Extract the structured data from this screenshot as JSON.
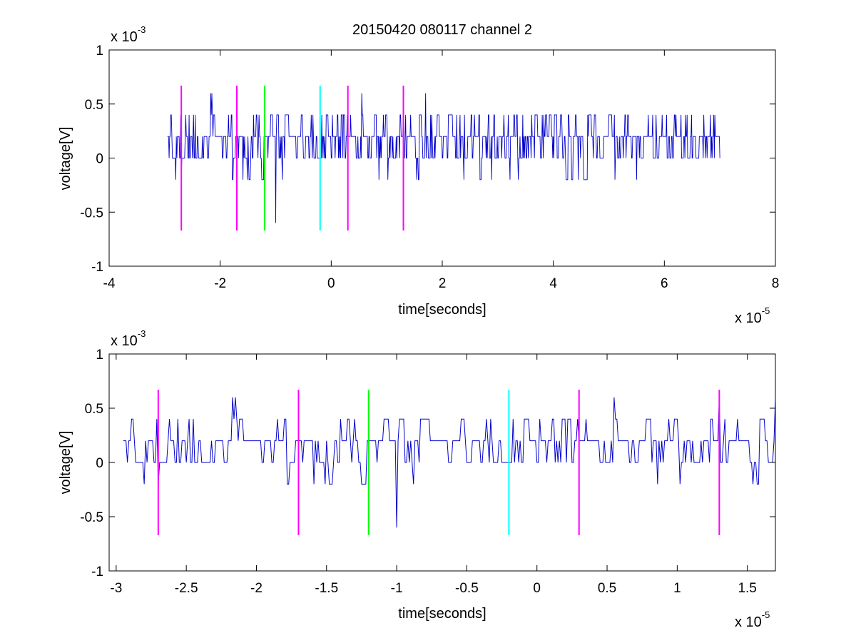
{
  "title": "20150420 080117 channel 2",
  "colors": {
    "background": "#ffffff",
    "signal": "#0000cc",
    "magenta": "#ff00ff",
    "green": "#00ff00",
    "cyan": "#00ffff",
    "axis": "#000000"
  },
  "chart_data": [
    {
      "type": "line",
      "panel": "top",
      "xlabel": "time[seconds]",
      "ylabel": "voltage[V]",
      "xlim": [
        -4e-05,
        8e-05
      ],
      "ylim": [
        -0.001,
        0.001
      ],
      "x_ticks": [
        -4,
        -2,
        0,
        2,
        4,
        6,
        8
      ],
      "x_tick_labels": [
        "-4",
        "-2",
        "0",
        "2",
        "4",
        "6",
        "8"
      ],
      "y_ticks": [
        -1,
        -0.5,
        0,
        0.5,
        1
      ],
      "y_tick_labels": [
        "-1",
        "-0.5",
        "0",
        "0.5",
        "1"
      ],
      "x_multiplier": "x 10",
      "x_exponent": "-5",
      "y_multiplier": "x 10",
      "y_exponent": "-3",
      "grid": false,
      "series": [
        {
          "signal_range_x": [
            -2.95e-05,
            7e-05
          ],
          "sample_step": 1e-07,
          "levels_V": [
            -0.0002,
            0,
            0.0002,
            0.0004
          ],
          "baseline_V": 0.0002,
          "color": "blue",
          "notable_points": [
            {
              "x": -1e-05,
              "y": -0.0006
            },
            {
              "x": 1.3e-05,
              "y": 0.0006
            },
            {
              "x": -2.15e-05,
              "y": 0.0006
            },
            {
              "x": 1.7e-05,
              "y": 0.0006
            }
          ]
        }
      ],
      "markers": [
        {
          "x": -2.7e-05,
          "color": "magenta",
          "ymin": -0.00067,
          "ymax": 0.00067
        },
        {
          "x": -1.7e-05,
          "color": "magenta",
          "ymin": -0.00067,
          "ymax": 0.00067
        },
        {
          "x": -1.2e-05,
          "color": "green",
          "ymin": -0.00067,
          "ymax": 0.00067
        },
        {
          "x": -2e-06,
          "color": "cyan",
          "ymin": -0.00067,
          "ymax": 0.00067
        },
        {
          "x": 3e-06,
          "color": "magenta",
          "ymin": -0.00067,
          "ymax": 0.00067
        },
        {
          "x": 1.3e-05,
          "color": "magenta",
          "ymin": -0.00067,
          "ymax": 0.00067
        }
      ]
    },
    {
      "type": "line",
      "panel": "bottom",
      "xlabel": "time[seconds]",
      "ylabel": "voltage[V]",
      "xlim": [
        -3.05e-05,
        1.7e-05
      ],
      "ylim": [
        -0.001,
        0.001
      ],
      "x_ticks": [
        -3,
        -2.5,
        -2,
        -1.5,
        -1,
        -0.5,
        0,
        0.5,
        1,
        1.5
      ],
      "x_tick_labels": [
        "-3",
        "-2.5",
        "-2",
        "-1.5",
        "-1",
        "-0.5",
        "0",
        "0.5",
        "1",
        "1.5"
      ],
      "y_ticks": [
        -1,
        -0.5,
        0,
        0.5,
        1
      ],
      "y_tick_labels": [
        "-1",
        "-0.5",
        "0",
        "0.5",
        "1"
      ],
      "x_multiplier": "x 10",
      "x_exponent": "-5",
      "y_multiplier": "x 10",
      "y_exponent": "-3",
      "grid": false,
      "series": [
        {
          "signal_range_x": [
            -2.95e-05,
            1.7e-05
          ],
          "sample_step": 1e-07,
          "levels_V": [
            -0.0002,
            0,
            0.0002,
            0.0004
          ],
          "baseline_V": 0.0002,
          "color": "blue",
          "notable_points": [
            {
              "x": -1e-05,
              "y": -0.0006
            },
            {
              "x": -2.17e-05,
              "y": 0.0006
            },
            {
              "x": 1.3e-05,
              "y": 0.0006
            },
            {
              "x": 5.5e-06,
              "y": 0.0006
            },
            {
              "x": -2.7e-05,
              "y": -0.0002
            }
          ]
        }
      ],
      "markers": [
        {
          "x": -2.7e-05,
          "color": "magenta",
          "ymin": -0.00067,
          "ymax": 0.00067
        },
        {
          "x": -1.7e-05,
          "color": "magenta",
          "ymin": -0.00067,
          "ymax": 0.00067
        },
        {
          "x": -1.2e-05,
          "color": "green",
          "ymin": -0.00067,
          "ymax": 0.00067
        },
        {
          "x": -2e-06,
          "color": "cyan",
          "ymin": -0.00067,
          "ymax": 0.00067
        },
        {
          "x": 3e-06,
          "color": "magenta",
          "ymin": -0.00067,
          "ymax": 0.00067
        },
        {
          "x": 1.3e-05,
          "color": "magenta",
          "ymin": -0.00067,
          "ymax": 0.00067
        }
      ]
    }
  ]
}
